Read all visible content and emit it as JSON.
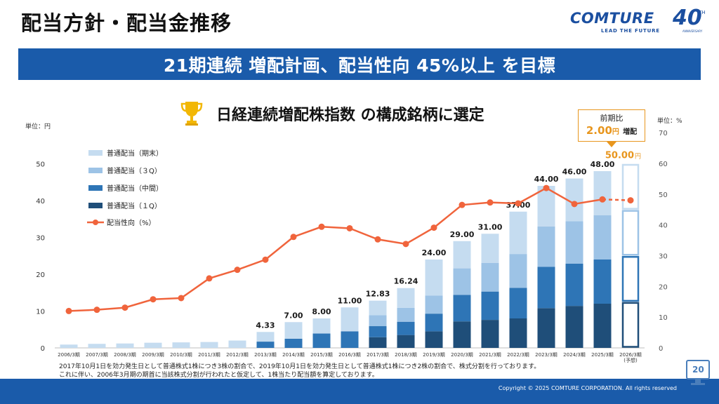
{
  "page": {
    "title": "配当方針・配当金推移",
    "banner": "21期連続 増配計画、配当性向 45%以上 を目標",
    "subtitle": "日経連続増配株指数 の構成銘柄に選定",
    "page_number": "20",
    "copyright": "Copyright © 2025 COMTURE CORPORATION. All rights reserved",
    "footnote_lines": [
      "2017年10月1日を効力発生日として普通株式1株につき3株の割合で、2019年10月1日を効力発生日として普通株式1株につき2株の割合で、株式分割を行っております。",
      "これに伴い、2006年3月期の期首に当該株式分割が行われたと仮定して、1株当たり配当額を算定しております。"
    ]
  },
  "logo": {
    "word": "COMTURE",
    "tagline": "LEAD THE FUTURE",
    "anniversary_number": "40",
    "anniversary_suffix": "TH",
    "anniversary_label": "ANNIVERSARY"
  },
  "callout": {
    "label": "前期比",
    "value": "2.00",
    "unit": "円",
    "suffix": "増配"
  },
  "colors": {
    "banner": "#1a5baa",
    "q1": "#1f4e79",
    "mid": "#2e75b6",
    "q3": "#9dc3e6",
    "year_end": "#c5dcf0",
    "payout_line": "#f0643c",
    "callout": "#e8961e",
    "forecast_total": "#e8961e"
  },
  "chart_data": {
    "type": "bar",
    "stacked": true,
    "left_axis_unit": "単位：円",
    "right_axis_unit": "単位：%",
    "ylim": [
      0,
      55
    ],
    "yticks": [
      0,
      10,
      20,
      30,
      40,
      50
    ],
    "y2lim": [
      0,
      70
    ],
    "y2ticks": [
      0,
      10,
      20,
      30,
      40,
      50,
      60,
      70
    ],
    "categories": [
      "2006/3期",
      "2007/3期",
      "2008/3期",
      "2009/3期",
      "2010/3期",
      "2011/3期",
      "2012/3期",
      "2013/3期",
      "2014/3期",
      "2015/3期",
      "2016/3期",
      "2017/3期",
      "2018/3期",
      "2019/3期",
      "2020/3期",
      "2021/3期",
      "2022/3期",
      "2023/3期",
      "2024/3期",
      "2025/3期",
      "2026/3期"
    ],
    "forecast_category_note": "(予想)",
    "series": [
      {
        "name": "普通配当（１Q）",
        "values": [
          0,
          0,
          0,
          0,
          0,
          0,
          0,
          0,
          0,
          0,
          0,
          2.9,
          3.5,
          4.5,
          7.2,
          7.6,
          8.0,
          10.8,
          11.4,
          12.0,
          12.5
        ]
      },
      {
        "name": "普通配当（中間）",
        "values": [
          0,
          0,
          0,
          0,
          0,
          0,
          0,
          1.7,
          2.5,
          3.9,
          4.5,
          3.0,
          3.6,
          4.8,
          7.2,
          7.7,
          8.3,
          11.2,
          11.5,
          12.0,
          12.5
        ]
      },
      {
        "name": "普通配当（３Q）",
        "values": [
          0,
          0,
          0,
          0,
          0,
          0,
          0,
          0,
          0,
          0,
          0,
          3.0,
          3.8,
          4.9,
          7.2,
          7.8,
          9.2,
          11.0,
          11.5,
          12.0,
          12.5
        ]
      },
      {
        "name": "普通配当（期末）",
        "values": [
          0.9,
          1.1,
          1.2,
          1.4,
          1.5,
          1.6,
          2.0,
          2.63,
          4.5,
          4.1,
          6.5,
          3.93,
          5.34,
          9.8,
          7.4,
          7.9,
          11.5,
          11.0,
          11.6,
          12.0,
          12.5
        ]
      }
    ],
    "totals": [
      0.9,
      1.1,
      1.2,
      1.4,
      1.5,
      1.6,
      2.0,
      4.33,
      7.0,
      8.0,
      11.0,
      12.83,
      16.24,
      24.0,
      29.0,
      31.0,
      37.0,
      44.0,
      46.0,
      48.0,
      50.0
    ],
    "total_labels": [
      "",
      "",
      "",
      "",
      "",
      "",
      "",
      "4.33",
      "7.00",
      "8.00",
      "11.00",
      "12.83",
      "16.24",
      "24.00",
      "29.00",
      "31.00",
      "37.00",
      "44.00",
      "46.00",
      "48.00",
      "50.00"
    ],
    "forecast_total_unit": "円",
    "payout_ratio": {
      "name": "配当性向（%）",
      "values": [
        12.0,
        12.4,
        13.1,
        15.8,
        16.2,
        22.6,
        25.4,
        28.7,
        36.1,
        39.4,
        38.9,
        35.3,
        33.8,
        39.1,
        46.5,
        47.3,
        47.0,
        52.0,
        46.8,
        48.3,
        48.0
      ]
    },
    "legend": [
      "普通配当（期末）",
      "普通配当（３Q）",
      "普通配当（中間）",
      "普通配当（１Q）",
      "配当性向（%）"
    ]
  }
}
